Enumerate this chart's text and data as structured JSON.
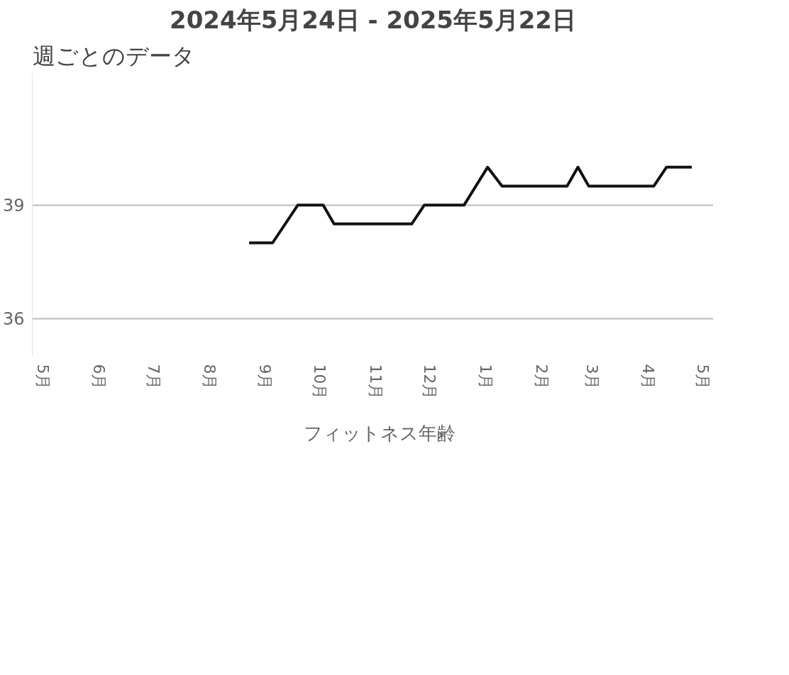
{
  "chart_data": {
    "type": "line",
    "title": "2024年5月24日 - 2025年5月22日",
    "subtitle": "週ごとのデータ",
    "x": [
      "2024-08-23",
      "2024-09-05",
      "2024-09-19",
      "2024-10-03",
      "2024-10-09",
      "2024-11-21",
      "2024-11-28",
      "2024-12-20",
      "2025-01-02",
      "2025-01-10",
      "2025-02-15",
      "2025-02-21",
      "2025-02-27",
      "2025-04-04",
      "2025-04-11",
      "2025-04-25"
    ],
    "series": [
      {
        "name": "フィットネス年齢",
        "color": "#111111",
        "values": [
          38,
          38,
          39,
          39,
          38.5,
          38.5,
          39,
          39,
          40,
          39.5,
          39.5,
          40,
          39.5,
          39.5,
          40,
          40
        ]
      }
    ],
    "xlim": [
      "2024-04-25",
      "2025-05-07"
    ],
    "xticks": [
      {
        "value": "2024-05-01",
        "label": "5月"
      },
      {
        "value": "2024-06-01",
        "label": "6月"
      },
      {
        "value": "2024-07-01",
        "label": "7月"
      },
      {
        "value": "2024-08-01",
        "label": "8月"
      },
      {
        "value": "2024-09-01",
        "label": "9月"
      },
      {
        "value": "2024-10-01",
        "label": "10月"
      },
      {
        "value": "2024-11-01",
        "label": "11月"
      },
      {
        "value": "2024-12-01",
        "label": "12月"
      },
      {
        "value": "2025-01-01",
        "label": "1月"
      },
      {
        "value": "2025-02-01",
        "label": "2月"
      },
      {
        "value": "2025-03-01",
        "label": "3月"
      },
      {
        "value": "2025-04-01",
        "label": "4月"
      },
      {
        "value": "2025-05-01",
        "label": "5月"
      }
    ],
    "ylim": [
      35,
      42.5
    ],
    "yticks": [
      36,
      39
    ],
    "grid": "y",
    "legend": "bottom",
    "marker": "none",
    "line_style": "solid"
  }
}
